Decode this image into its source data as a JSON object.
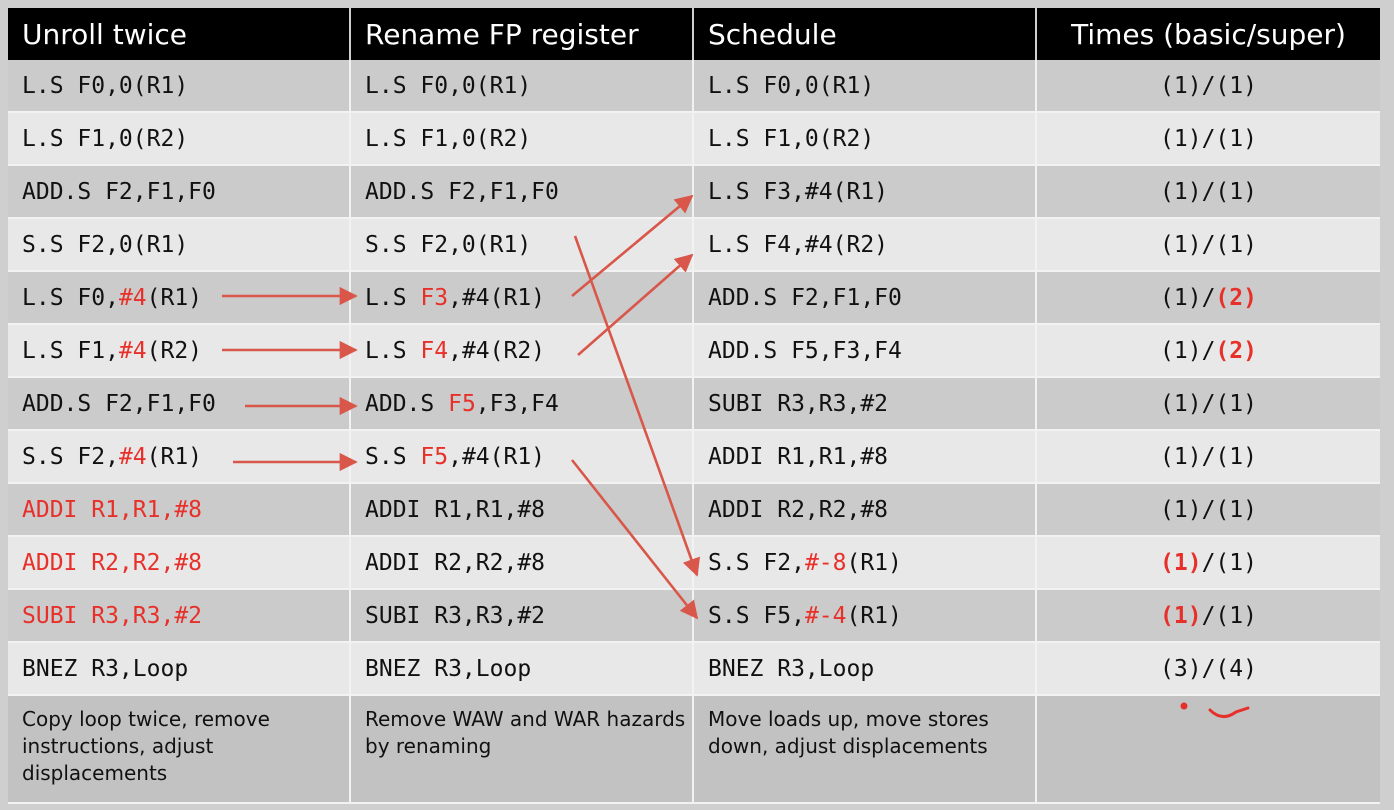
{
  "headers": [
    "Unroll twice",
    "Rename FP register",
    "Schedule",
    "Times (basic/super)"
  ],
  "rows": [
    {
      "shade": "dark",
      "unroll": [
        {
          "t": "L.S F0,0(R1)"
        }
      ],
      "rename": [
        {
          "t": "L.S F0,0(R1)"
        }
      ],
      "schedule": [
        {
          "t": "L.S F0,0(R1)"
        }
      ],
      "times": [
        {
          "t": "(1)/(1)"
        }
      ]
    },
    {
      "shade": "light",
      "unroll": [
        {
          "t": "L.S F1,0(R2)"
        }
      ],
      "rename": [
        {
          "t": "L.S F1,0(R2)"
        }
      ],
      "schedule": [
        {
          "t": "L.S F1,0(R2)"
        }
      ],
      "times": [
        {
          "t": "(1)/(1)"
        }
      ]
    },
    {
      "shade": "dark",
      "unroll": [
        {
          "t": "ADD.S F2,F1,F0"
        }
      ],
      "rename": [
        {
          "t": "ADD.S F2,F1,F0"
        }
      ],
      "schedule": [
        {
          "t": "L.S F3,#4(R1)"
        }
      ],
      "times": [
        {
          "t": "(1)/(1)"
        }
      ]
    },
    {
      "shade": "light",
      "unroll": [
        {
          "t": "S.S F2,0(R1)"
        }
      ],
      "rename": [
        {
          "t": "S.S F2,0(R1)"
        }
      ],
      "schedule": [
        {
          "t": "L.S F4,#4(R2)"
        }
      ],
      "times": [
        {
          "t": "(1)/(1)"
        }
      ]
    },
    {
      "shade": "dark",
      "unroll": [
        {
          "t": "L.S F0,"
        },
        {
          "t": "#4",
          "c": "red"
        },
        {
          "t": "(R1)"
        }
      ],
      "rename": [
        {
          "t": "L.S "
        },
        {
          "t": "F3",
          "c": "red"
        },
        {
          "t": ",#4(R1)"
        }
      ],
      "schedule": [
        {
          "t": "ADD.S F2,F1,F0"
        }
      ],
      "times": [
        {
          "t": "(1)/"
        },
        {
          "t": "(2)",
          "c": "redb"
        }
      ]
    },
    {
      "shade": "light",
      "unroll": [
        {
          "t": "L.S F1,"
        },
        {
          "t": "#4",
          "c": "red"
        },
        {
          "t": "(R2)"
        }
      ],
      "rename": [
        {
          "t": "L.S "
        },
        {
          "t": "F4",
          "c": "red"
        },
        {
          "t": ",#4(R2)"
        }
      ],
      "schedule": [
        {
          "t": "ADD.S F5,F3,F4"
        }
      ],
      "times": [
        {
          "t": "(1)/"
        },
        {
          "t": "(2)",
          "c": "redb"
        }
      ]
    },
    {
      "shade": "dark",
      "unroll": [
        {
          "t": "ADD.S F2,F1,F0"
        }
      ],
      "rename": [
        {
          "t": "ADD.S "
        },
        {
          "t": "F5",
          "c": "red"
        },
        {
          "t": ",F3,F4"
        }
      ],
      "schedule": [
        {
          "t": "SUBI R3,R3,#2"
        }
      ],
      "times": [
        {
          "t": "(1)/(1)"
        }
      ]
    },
    {
      "shade": "light",
      "unroll": [
        {
          "t": "S.S F2,"
        },
        {
          "t": "#4",
          "c": "red"
        },
        {
          "t": "(R1)"
        }
      ],
      "rename": [
        {
          "t": "S.S "
        },
        {
          "t": "F5",
          "c": "red"
        },
        {
          "t": ",#4(R1)"
        }
      ],
      "schedule": [
        {
          "t": "ADDI R1,R1,#8"
        }
      ],
      "times": [
        {
          "t": "(1)/(1)"
        }
      ]
    },
    {
      "shade": "dark",
      "unroll": [
        {
          "t": "ADDI R1,R1,#8",
          "c": "red"
        }
      ],
      "rename": [
        {
          "t": "ADDI R1,R1,#8"
        }
      ],
      "schedule": [
        {
          "t": "ADDI R2,R2,#8"
        }
      ],
      "times": [
        {
          "t": "(1)/(1)"
        }
      ]
    },
    {
      "shade": "light",
      "unroll": [
        {
          "t": "ADDI R2,R2,#8",
          "c": "red"
        }
      ],
      "rename": [
        {
          "t": "ADDI R2,R2,#8"
        }
      ],
      "schedule": [
        {
          "t": "S.S F2,"
        },
        {
          "t": "#-8",
          "c": "red"
        },
        {
          "t": "(R1)"
        }
      ],
      "times": [
        {
          "t": "(1)",
          "c": "redb"
        },
        {
          "t": "/(1)"
        }
      ]
    },
    {
      "shade": "dark",
      "unroll": [
        {
          "t": "SUBI R3,R3,#2",
          "c": "red"
        }
      ],
      "rename": [
        {
          "t": "SUBI R3,R3,#2"
        }
      ],
      "schedule": [
        {
          "t": "S.S F5,"
        },
        {
          "t": "#-4",
          "c": "red"
        },
        {
          "t": "(R1)"
        }
      ],
      "times": [
        {
          "t": "(1)",
          "c": "redb"
        },
        {
          "t": "/(1)"
        }
      ]
    },
    {
      "shade": "light",
      "unroll": [
        {
          "t": "BNEZ R3,Loop"
        }
      ],
      "rename": [
        {
          "t": "BNEZ R3,Loop"
        }
      ],
      "schedule": [
        {
          "t": "BNEZ R3,Loop"
        }
      ],
      "times": [
        {
          "t": "(3)/(4)"
        }
      ]
    }
  ],
  "notes": [
    "Copy loop twice, remove instructions, adjust displacements",
    "Remove WAW and WAR hazards by renaming",
    "Move loads up, move stores down, adjust displacements",
    ""
  ],
  "colors": {
    "accent": "#e8302a",
    "arrow": "#d9574a"
  }
}
